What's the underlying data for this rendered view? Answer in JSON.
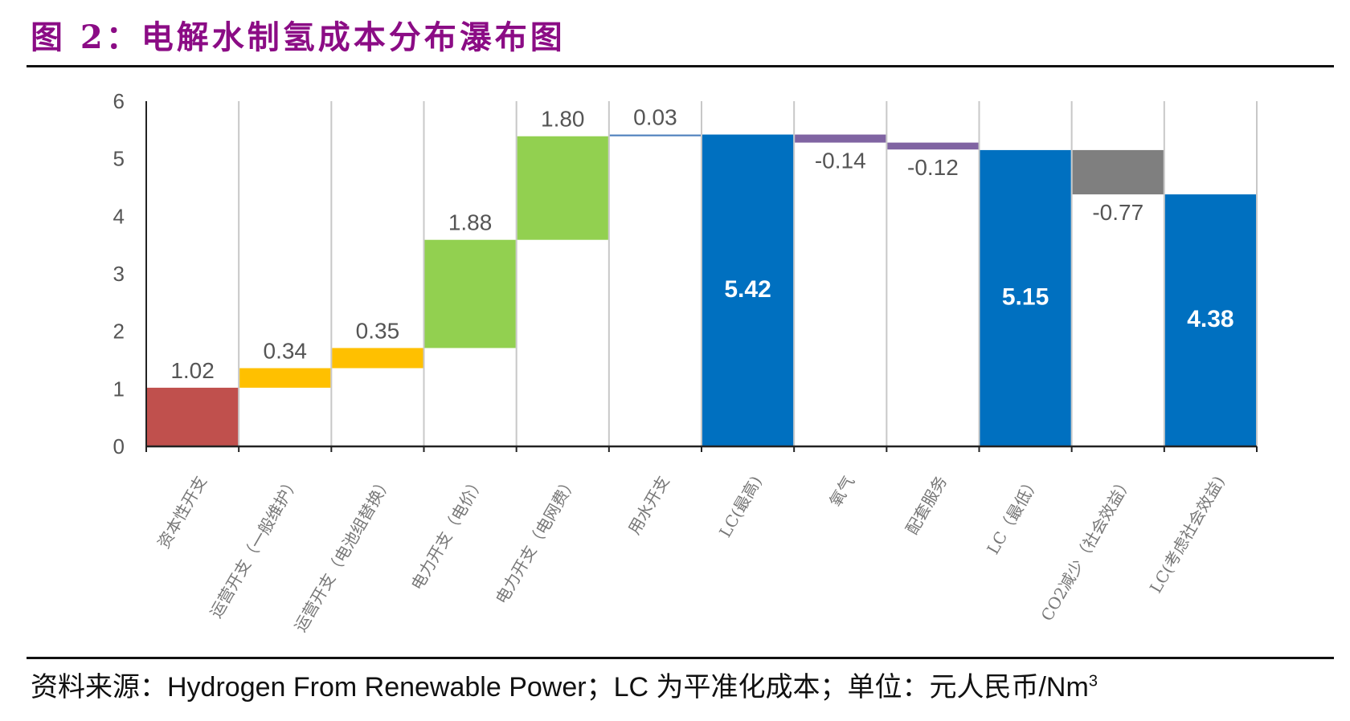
{
  "title": "图 2：电解水制氢成本分布瀑布图",
  "source": {
    "text": "资料来源：Hydrogen From Renewable Power；LC 为平准化成本；单位：元人民币/Nm",
    "superscript": "3"
  },
  "chart_data": {
    "type": "waterfall",
    "title": "",
    "xlabel": "",
    "ylabel": "",
    "ylim": [
      0,
      6
    ],
    "yticks": [
      "0",
      "1",
      "2",
      "3",
      "4",
      "5",
      "6"
    ],
    "grid": "vertical category separators",
    "categories": [
      "资本性开支",
      "运营开支（一般维护）",
      "运营开支（电池组替换）",
      "电力开支（电价）",
      "电力开支（电网费）",
      "用水开支",
      "LC(最高)",
      "氧气",
      "配套服务",
      "LC（最低）",
      "CO2减少（社会效益）",
      "LC(考虑社会效益)"
    ],
    "values": [
      1.02,
      0.34,
      0.35,
      1.88,
      1.8,
      0.03,
      5.42,
      -0.14,
      -0.12,
      5.15,
      -0.77,
      4.38
    ],
    "labels": [
      "1.02",
      "0.34",
      "0.35",
      "1.88",
      "1.80",
      "0.03",
      "5.42",
      "-0.14",
      "-0.12",
      "5.15",
      "-0.77",
      "4.38"
    ],
    "is_total": [
      false,
      false,
      false,
      false,
      false,
      false,
      true,
      false,
      false,
      true,
      false,
      true
    ],
    "colors": [
      "#C0504D",
      "#FFC000",
      "#FFC000",
      "#92D050",
      "#92D050",
      "#4F81BD",
      "#0070C0",
      "#8064A2",
      "#8064A2",
      "#0070C0",
      "#7F7F7F",
      "#0070C0"
    ]
  }
}
